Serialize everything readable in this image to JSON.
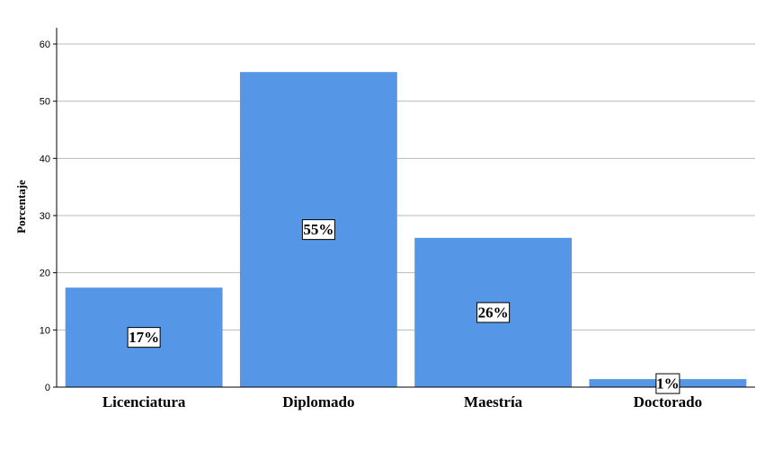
{
  "chart_data": {
    "type": "bar",
    "categories": [
      "Licenciatura",
      "Diplomado",
      "Maestría",
      "Doctorado"
    ],
    "values": [
      17.4,
      55.1,
      26.1,
      1.4
    ],
    "data_labels": [
      "17%",
      "55%",
      "26%",
      "1%"
    ],
    "ylabel": "Porcentaje",
    "xlabel": "",
    "ylim": [
      0,
      60
    ],
    "yticks": [
      "0",
      "10",
      "20",
      "30",
      "40",
      "50",
      "60"
    ],
    "grid": true,
    "bar_color": "#5596e6"
  }
}
